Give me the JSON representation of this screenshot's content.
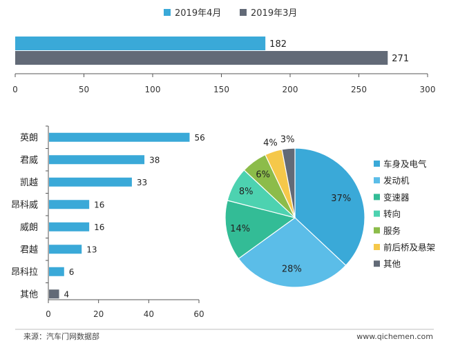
{
  "chart_data": [
    {
      "type": "bar",
      "orientation": "horizontal",
      "categories": [
        ""
      ],
      "series": [
        {
          "name": "2019年4月",
          "values": [
            182
          ],
          "color": "#3aa9d8"
        },
        {
          "name": "2019年3月",
          "values": [
            271
          ],
          "color": "#626a77"
        }
      ],
      "xlim": [
        0,
        300
      ],
      "xticks": [
        0,
        50,
        100,
        150,
        200,
        250,
        300
      ],
      "legend_position": "top-center",
      "grid": false
    },
    {
      "type": "bar",
      "orientation": "horizontal",
      "categories": [
        "英朗",
        "君威",
        "凯越",
        "昂科威",
        "威朗",
        "君越",
        "昂科拉",
        "其他"
      ],
      "values": [
        56,
        38,
        33,
        16,
        16,
        13,
        6,
        4
      ],
      "colors": [
        "#3aa9d8",
        "#3aa9d8",
        "#3aa9d8",
        "#3aa9d8",
        "#3aa9d8",
        "#3aa9d8",
        "#3aa9d8",
        "#626a77"
      ],
      "xlim": [
        0,
        60
      ],
      "xticks": [
        0,
        20,
        40,
        60
      ],
      "grid": false
    },
    {
      "type": "pie",
      "labels": [
        "车身及电气",
        "发动机",
        "变速器",
        "转向",
        "服务",
        "前后桥及悬架",
        "其他"
      ],
      "values": [
        37,
        28,
        14,
        8,
        6,
        4,
        3
      ],
      "value_labels": [
        "37%",
        "28%",
        "14%",
        "8%",
        "6%",
        "4%",
        "3%"
      ],
      "colors": [
        "#3aa9d8",
        "#5bbde8",
        "#33bc96",
        "#4dd2b0",
        "#8cbc4a",
        "#f5c84a",
        "#626a77"
      ],
      "legend_position": "right"
    }
  ],
  "footer": {
    "source": "来源：汽车门网数据部",
    "website": "www.qichemen.com"
  }
}
